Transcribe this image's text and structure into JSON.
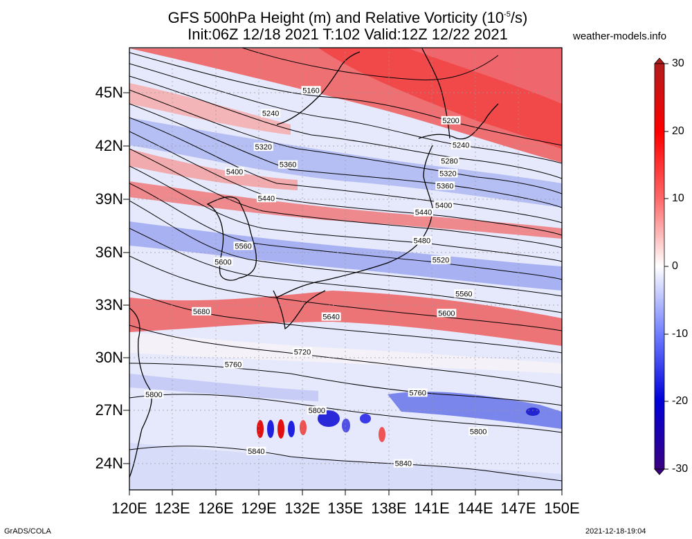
{
  "title": {
    "line1_main": "GFS 500hPa Height (m) and Relative Vorticity (10",
    "line1_exp": "-5",
    "line1_tail": "/s)",
    "line2": "Init:06Z 12/18 2021 T:102 Valid:12Z 12/22 2021"
  },
  "site": "weather-models.info",
  "footer": {
    "left": "GrADS/COLA",
    "right": "2021-12-18-19:04"
  },
  "axes": {
    "lat_labels": [
      "45N",
      "42N",
      "39N",
      "36N",
      "33N",
      "30N",
      "27N",
      "24N"
    ],
    "lon_labels": [
      "120E",
      "123E",
      "126E",
      "129E",
      "132E",
      "135E",
      "138E",
      "141E",
      "144E",
      "147E",
      "150E"
    ],
    "lat_range": [
      22.5,
      47.5
    ],
    "lon_range": [
      120,
      150
    ]
  },
  "colorbar": {
    "ticks": [
      "30",
      "20",
      "10",
      "0",
      "-10",
      "-20",
      "-30"
    ],
    "colors": [
      "#b21c1c",
      "#ff0000",
      "#ff6666",
      "#ffffff",
      "#6d7cff",
      "#0000d9",
      "#3a0080"
    ]
  },
  "contours": {
    "color": "#000000",
    "labels": [
      {
        "text": "5160",
        "lon": 132.6,
        "lat": 45.1
      },
      {
        "text": "5240",
        "lon": 129.8,
        "lat": 43.8
      },
      {
        "text": "5200",
        "lon": 142.3,
        "lat": 43.4
      },
      {
        "text": "5240",
        "lon": 143.0,
        "lat": 42.0
      },
      {
        "text": "5280",
        "lon": 142.2,
        "lat": 41.1
      },
      {
        "text": "5320",
        "lon": 129.3,
        "lat": 41.9
      },
      {
        "text": "5320",
        "lon": 142.1,
        "lat": 40.4
      },
      {
        "text": "5360",
        "lon": 131.0,
        "lat": 40.9
      },
      {
        "text": "5360",
        "lon": 141.9,
        "lat": 39.7
      },
      {
        "text": "5400",
        "lon": 127.3,
        "lat": 40.5
      },
      {
        "text": "5400",
        "lon": 141.8,
        "lat": 38.6
      },
      {
        "text": "5440",
        "lon": 129.5,
        "lat": 39.0
      },
      {
        "text": "5440",
        "lon": 140.4,
        "lat": 38.2
      },
      {
        "text": "5480",
        "lon": 140.3,
        "lat": 36.6
      },
      {
        "text": "5520",
        "lon": 141.6,
        "lat": 35.5
      },
      {
        "text": "5560",
        "lon": 127.9,
        "lat": 36.3
      },
      {
        "text": "5560",
        "lon": 143.2,
        "lat": 33.6
      },
      {
        "text": "5600",
        "lon": 126.5,
        "lat": 35.4
      },
      {
        "text": "5600",
        "lon": 142.0,
        "lat": 32.5
      },
      {
        "text": "5640",
        "lon": 134.0,
        "lat": 32.3
      },
      {
        "text": "5680",
        "lon": 125.0,
        "lat": 32.6
      },
      {
        "text": "5720",
        "lon": 132.0,
        "lat": 30.3
      },
      {
        "text": "5760",
        "lon": 127.2,
        "lat": 29.6
      },
      {
        "text": "5760",
        "lon": 140.0,
        "lat": 28.0
      },
      {
        "text": "5800",
        "lon": 121.7,
        "lat": 27.9
      },
      {
        "text": "5800",
        "lon": 133.0,
        "lat": 27.0
      },
      {
        "text": "5800",
        "lon": 144.2,
        "lat": 25.8
      },
      {
        "text": "5840",
        "lon": 128.8,
        "lat": 24.7
      },
      {
        "text": "5840",
        "lon": 139.0,
        "lat": 24.0
      }
    ]
  }
}
